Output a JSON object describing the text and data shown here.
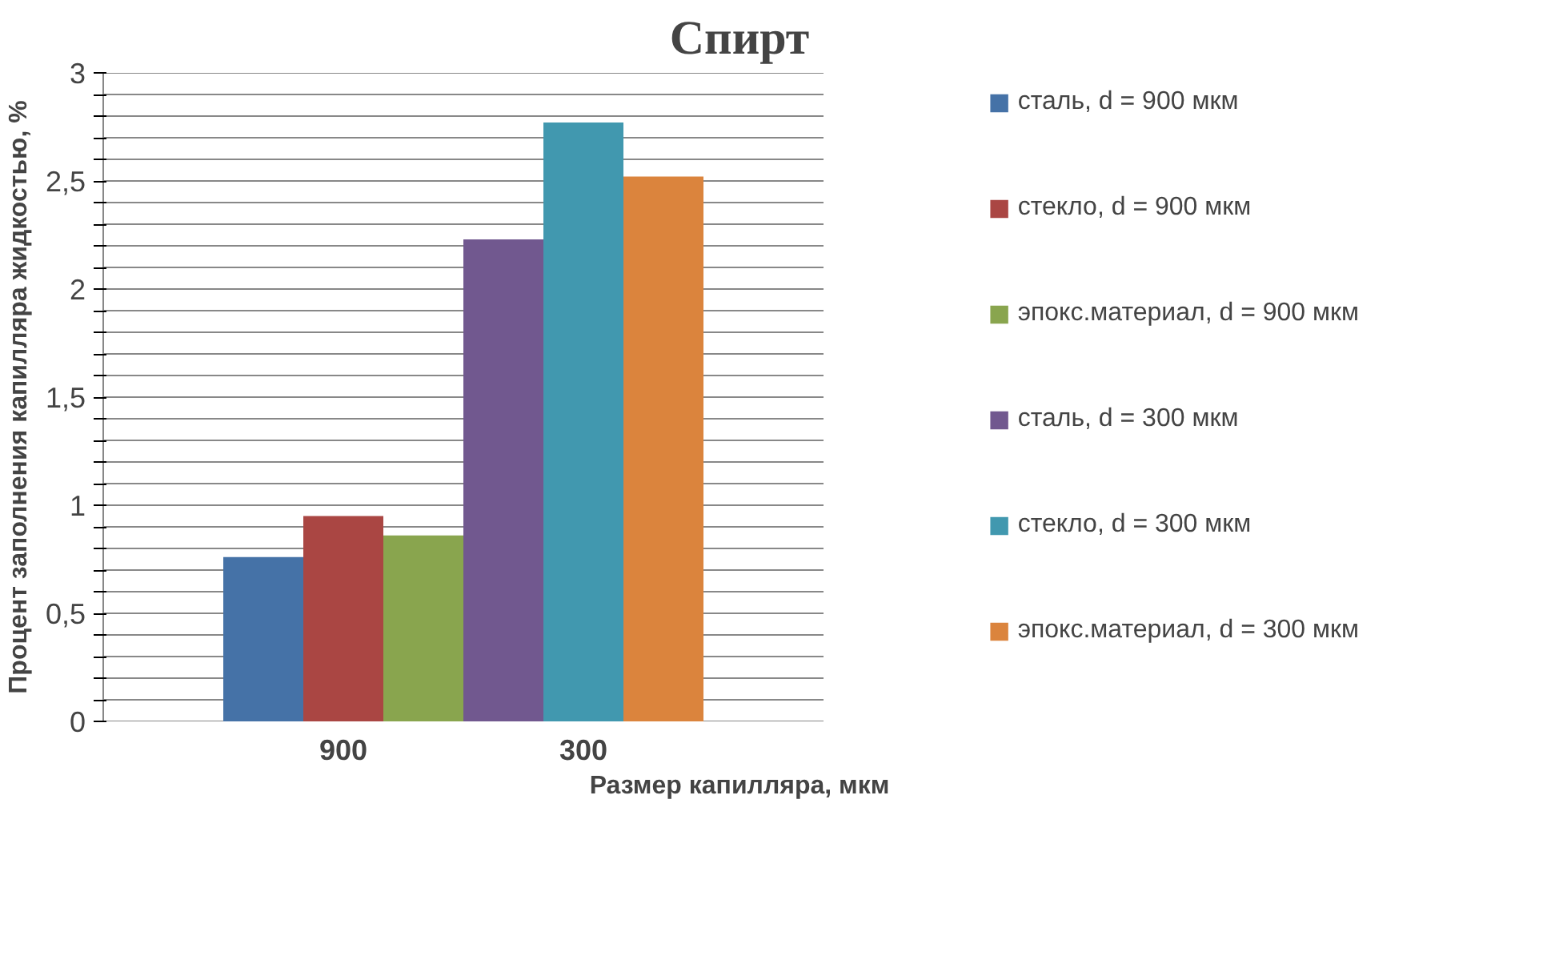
{
  "chart_data": {
    "type": "bar",
    "title": "Спирт",
    "xlabel": "Размер капилляра, мкм",
    "ylabel": "Процент заполнения капилляра жидкостью, %",
    "categories": [
      "900",
      "300"
    ],
    "series": [
      {
        "name": "сталь, d = 900 мкм",
        "color": "#4572a7",
        "values": [
          0.76,
          null
        ]
      },
      {
        "name": "стекло, d = 900 мкм",
        "color": "#aa4643",
        "values": [
          0.95,
          null
        ]
      },
      {
        "name": "эпокс.материал, d = 900 мкм",
        "color": "#89a54e",
        "values": [
          0.86,
          null
        ]
      },
      {
        "name": "сталь, d = 300 мкм",
        "color": "#71588f",
        "values": [
          null,
          2.23
        ]
      },
      {
        "name": "стекло, d = 300 мкм",
        "color": "#4198af",
        "values": [
          null,
          2.77
        ]
      },
      {
        "name": "эпокс.материал, d = 300 мкм",
        "color": "#db843d",
        "values": [
          null,
          2.52
        ]
      }
    ],
    "ylim": [
      0,
      3
    ],
    "yticks": [
      0,
      {
        "value": 0.1,
        "label": null
      },
      {
        "value": 0.2,
        "label": null
      },
      {
        "value": 0.3,
        "label": null
      },
      {
        "value": 0.4,
        "label": null
      },
      {
        "value": 0.5,
        "label": "0,5"
      },
      {
        "value": 0.6,
        "label": null
      },
      {
        "value": 0.7,
        "label": null
      },
      {
        "value": 0.8,
        "label": null
      },
      {
        "value": 0.9,
        "label": null
      },
      1,
      {
        "value": 1.1,
        "label": null
      },
      {
        "value": 1.2,
        "label": null
      },
      {
        "value": 1.3,
        "label": null
      },
      {
        "value": 1.4,
        "label": null
      },
      {
        "value": 1.5,
        "label": "1,5"
      },
      {
        "value": 1.6,
        "label": null
      },
      {
        "value": 1.7,
        "label": null
      },
      {
        "value": 1.8,
        "label": null
      },
      {
        "value": 1.9,
        "label": null
      },
      2,
      {
        "value": 2.1,
        "label": null
      },
      {
        "value": 2.2,
        "label": null
      },
      {
        "value": 2.3,
        "label": null
      },
      {
        "value": 2.4,
        "label": null
      },
      {
        "value": 2.5,
        "label": "2,5"
      },
      {
        "value": 2.6,
        "label": null
      },
      {
        "value": 2.7,
        "label": null
      },
      {
        "value": 2.8,
        "label": null
      },
      {
        "value": 2.9,
        "label": null
      },
      3
    ],
    "grid": "y",
    "legend": "right"
  }
}
